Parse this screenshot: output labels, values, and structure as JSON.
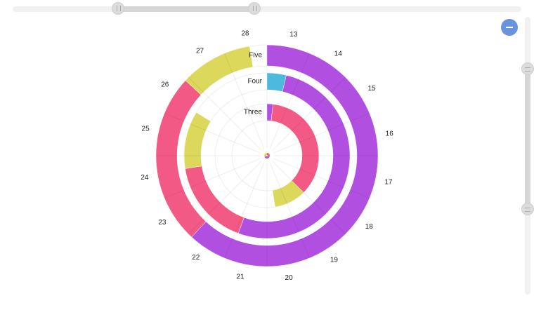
{
  "chart_data": {
    "type": "radial-bar",
    "title": "",
    "x_range": [
      13,
      29
    ],
    "categories_axis_ticks": [
      13,
      14,
      15,
      16,
      17,
      18,
      19,
      20,
      21,
      22,
      23,
      24,
      25,
      26,
      27,
      28
    ],
    "rings": [
      {
        "name": "Five",
        "bars": [
          {
            "start": 13.0,
            "end": 22.9,
            "color": "#b14fe1"
          },
          {
            "start": 22.9,
            "end": 26.9,
            "color": "#f25a85"
          },
          {
            "start": 26.9,
            "end": 28.6,
            "color": "#dbd85b"
          }
        ]
      },
      {
        "name": "Four",
        "bars": [
          {
            "start": 13.0,
            "end": 13.6,
            "color": "#4cbadf"
          },
          {
            "start": 13.6,
            "end": 21.9,
            "color": "#b14fe1"
          },
          {
            "start": 21.9,
            "end": 24.6,
            "color": "#f25a85"
          },
          {
            "start": 24.6,
            "end": 26.4,
            "color": "#dbd85b"
          }
        ]
      },
      {
        "name": "Three",
        "bars": [
          {
            "start": 13.0,
            "end": 13.3,
            "color": "#b14fe1"
          },
          {
            "start": 13.3,
            "end": 19.0,
            "color": "#f25a85"
          },
          {
            "start": 19.0,
            "end": 20.6,
            "color": "#dbd85b"
          }
        ]
      }
    ],
    "center_marker_colors": [
      "#f25a85",
      "#b14fe1",
      "#dbd85b"
    ],
    "grid": true,
    "legend": "none"
  },
  "controls": {
    "horizontal_scrollbar": {
      "range": [
        0.21,
        0.47
      ]
    },
    "vertical_scrollbar": {
      "range": [
        0.19,
        0.69
      ]
    },
    "zoom_out_icon": "minus-icon"
  }
}
